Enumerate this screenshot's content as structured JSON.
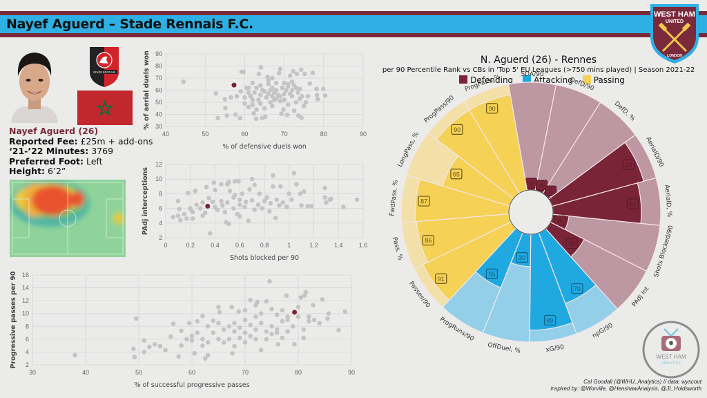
{
  "header": {
    "title": "Nayef Aguerd – Stade Rennais F.C.",
    "crest_top": "WEST HAM",
    "crest_mid": "UNITED",
    "crest_bottom": "LONDON"
  },
  "player": {
    "name_line": "Nayef Aguerd (26)",
    "fee_label": "Reported Fee:",
    "fee_value": "£25m + add-ons",
    "minutes_label": "‘21-’22 Minutes:",
    "minutes_value": "3769",
    "foot_label": "Preferred Foot:",
    "foot_value": "Left",
    "height_label": "Height:",
    "height_value": "6’2”",
    "club_badge_text": "STADE RENNAIS"
  },
  "colors": {
    "defending": "#7a2438",
    "defending_bg": "#bd98a3",
    "attacking": "#1fa9e0",
    "attacking_bg": "#93cfe8",
    "passing": "#f5d155",
    "passing_bg": "#f2e0a8",
    "highlight": "#7a2438",
    "dots": "#c4c4c4"
  },
  "pizza": {
    "title": "N. Aguerd (26) - Rennes",
    "subtitle": "per 90 Percentile Rank vs CBs in 'Top 5' EU Leagues (>750 mins played) | Season 2021-22",
    "legend": [
      "Defending",
      "Attacking",
      "Passing"
    ]
  },
  "credits": {
    "line1": "Cal Goodall (@WHU_Analytics) // data: wyscout",
    "line2": "inspired by: @Worville, @HenshawAnalysis, @JI_Holdsworth",
    "logo_text1": "WEST HAM",
    "logo_text2": "ANALYTICS"
  },
  "chart_data": [
    {
      "type": "scatter",
      "id": "aerial",
      "xlabel": "% of defensive duels won",
      "ylabel": "% of aerial duels won",
      "xlim": [
        40,
        90
      ],
      "ylim": [
        30,
        90
      ],
      "xticks": [
        40,
        50,
        60,
        70,
        80,
        90
      ],
      "yticks": [
        30,
        40,
        50,
        60,
        70,
        80,
        90
      ],
      "grid": true,
      "highlight": {
        "x": 57.3,
        "y": 64.2,
        "label": "Nayef Aguerd"
      },
      "points": [
        [
          44.5,
          67
        ],
        [
          52.7,
          57.3
        ],
        [
          53.2,
          37
        ],
        [
          55,
          52.5
        ],
        [
          55.1,
          45.2
        ],
        [
          55.5,
          39
        ],
        [
          56.5,
          54
        ],
        [
          57.7,
          39.8
        ],
        [
          58.8,
          36.8
        ],
        [
          59.2,
          75.2
        ],
        [
          59.7,
          75
        ],
        [
          60.5,
          62
        ],
        [
          61,
          58
        ],
        [
          62,
          48
        ],
        [
          62.3,
          40.8
        ],
        [
          62.9,
          36.3
        ],
        [
          63.6,
          73.5
        ],
        [
          64.1,
          78.8
        ],
        [
          64.4,
          37
        ],
        [
          65.2,
          38
        ],
        [
          65.8,
          71
        ],
        [
          66.5,
          60
        ],
        [
          67,
          55
        ],
        [
          67.5,
          52
        ],
        [
          68,
          66
        ],
        [
          68.7,
          74
        ],
        [
          69,
          77.5
        ],
        [
          69.3,
          40.5
        ],
        [
          69.8,
          44
        ],
        [
          70.8,
          39.5
        ],
        [
          71.5,
          72
        ],
        [
          72,
          60
        ],
        [
          72.3,
          75.6
        ],
        [
          72.5,
          43
        ],
        [
          73.2,
          73.5
        ],
        [
          73.6,
          39
        ],
        [
          74.4,
          37.2
        ],
        [
          74.3,
          77
        ],
        [
          75.2,
          73.5
        ],
        [
          75.5,
          50
        ],
        [
          76.5,
          65.5
        ],
        [
          77.2,
          74.3
        ],
        [
          78.2,
          61
        ],
        [
          78.3,
          56
        ],
        [
          78.5,
          52.5
        ],
        [
          79.9,
          61
        ],
        [
          80.4,
          55.5
        ],
        [
          61.5,
          55
        ],
        [
          62.5,
          58
        ],
        [
          63.5,
          52
        ],
        [
          64.5,
          60
        ],
        [
          65.5,
          54
        ],
        [
          66.5,
          50
        ],
        [
          67.5,
          58
        ],
        [
          68.5,
          56
        ],
        [
          69.5,
          62
        ],
        [
          70.5,
          60
        ],
        [
          71.5,
          57
        ],
        [
          72.5,
          64
        ],
        [
          73.5,
          58
        ],
        [
          74.5,
          55
        ],
        [
          63,
          62
        ],
        [
          64,
          49
        ],
        [
          65,
          45
        ],
        [
          66,
          65
        ],
        [
          67,
          47
        ],
        [
          68,
          53
        ],
        [
          69,
          51
        ],
        [
          70,
          57
        ],
        [
          71,
          63
        ],
        [
          72,
          55
        ],
        [
          73,
          50
        ],
        [
          74,
          61
        ],
        [
          60,
          54
        ],
        [
          61,
          62
        ],
        [
          62,
          66
        ],
        [
          63,
          44
        ],
        [
          64,
          56
        ],
        [
          65,
          59
        ],
        [
          66,
          57
        ],
        [
          67,
          62
        ],
        [
          68,
          60
        ],
        [
          69,
          55
        ],
        [
          70,
          52
        ],
        [
          71,
          48
        ],
        [
          72,
          67
        ],
        [
          73,
          62
        ],
        [
          74,
          53
        ],
        [
          75,
          47
        ],
        [
          76,
          55
        ],
        [
          58,
          55
        ],
        [
          59,
          59
        ],
        [
          60,
          49
        ],
        [
          61,
          46
        ],
        [
          66,
          68
        ],
        [
          67,
          70
        ],
        [
          70,
          66
        ],
        [
          71,
          65
        ],
        [
          62,
          52
        ],
        [
          64,
          64
        ]
      ]
    },
    {
      "type": "scatter",
      "id": "shots",
      "xlabel": "Shots blocked per 90",
      "ylabel": "PAdj interceptions",
      "xlim": [
        0,
        1.6
      ],
      "ylim": [
        2,
        12
      ],
      "xticks": [
        0,
        0.2,
        0.4,
        0.6,
        0.8,
        1,
        1.2,
        1.4,
        1.6
      ],
      "yticks": [
        2,
        4,
        6,
        8,
        10,
        12
      ],
      "grid": true,
      "highlight": {
        "x": 0.34,
        "y": 6.3,
        "label": "Nayef Aguerd"
      },
      "points": [
        [
          0.06,
          4.8
        ],
        [
          0.1,
          7
        ],
        [
          0.1,
          5
        ],
        [
          0.11,
          5.9
        ],
        [
          0.12,
          4.4
        ],
        [
          0.17,
          4.6
        ],
        [
          0.18,
          8.1
        ],
        [
          0.2,
          6
        ],
        [
          0.22,
          4.6
        ],
        [
          0.24,
          8.4
        ],
        [
          0.3,
          5
        ],
        [
          0.33,
          8.9
        ],
        [
          0.36,
          2.6
        ],
        [
          0.39,
          9.5
        ],
        [
          0.4,
          8.5
        ],
        [
          0.45,
          9.3
        ],
        [
          0.5,
          9.3
        ],
        [
          0.51,
          9.6
        ],
        [
          0.49,
          4.1
        ],
        [
          0.51,
          3.9
        ],
        [
          0.56,
          9.7
        ],
        [
          0.59,
          9.7
        ],
        [
          0.6,
          4.9
        ],
        [
          0.67,
          4.3
        ],
        [
          0.7,
          10
        ],
        [
          0.72,
          9.2
        ],
        [
          0.76,
          8
        ],
        [
          0.82,
          7.5
        ],
        [
          0.87,
          10.5
        ],
        [
          0.87,
          9
        ],
        [
          0.89,
          4.7
        ],
        [
          0.93,
          9
        ],
        [
          0.98,
          6.2
        ],
        [
          1,
          8
        ],
        [
          1.04,
          10.8
        ],
        [
          1.06,
          9.3
        ],
        [
          1.09,
          8
        ],
        [
          1.1,
          6.4
        ],
        [
          1.12,
          8.3
        ],
        [
          1.15,
          6.3
        ],
        [
          1.18,
          6.3
        ],
        [
          1.29,
          8.8
        ],
        [
          1.29,
          7.5
        ],
        [
          1.3,
          6.8
        ],
        [
          1.33,
          7.2
        ],
        [
          1.34,
          7.3
        ],
        [
          1.44,
          6.2
        ],
        [
          1.55,
          7.2
        ],
        [
          0.25,
          6.5
        ],
        [
          0.3,
          6.8
        ],
        [
          0.35,
          7.4
        ],
        [
          0.4,
          6.2
        ],
        [
          0.45,
          7
        ],
        [
          0.5,
          6.8
        ],
        [
          0.55,
          7.5
        ],
        [
          0.6,
          7.2
        ],
        [
          0.65,
          6.9
        ],
        [
          0.7,
          7.1
        ],
        [
          0.75,
          6.5
        ],
        [
          0.8,
          7
        ],
        [
          0.85,
          6.7
        ],
        [
          0.9,
          7.2
        ],
        [
          0.95,
          6.8
        ],
        [
          0.55,
          6
        ],
        [
          0.6,
          6.5
        ],
        [
          0.62,
          8
        ],
        [
          0.58,
          5.2
        ],
        [
          0.48,
          5.5
        ],
        [
          0.42,
          5.8
        ],
        [
          0.38,
          6.9
        ],
        [
          0.28,
          6
        ],
        [
          0.22,
          5.5
        ],
        [
          0.32,
          5.4
        ],
        [
          0.52,
          8.4
        ],
        [
          0.68,
          8.6
        ],
        [
          0.72,
          5.8
        ],
        [
          0.78,
          6
        ],
        [
          0.84,
          5.6
        ],
        [
          0.92,
          6.4
        ],
        [
          1.02,
          7.2
        ],
        [
          0.15,
          5.2
        ],
        [
          0.2,
          5.9
        ],
        [
          0.64,
          6.2
        ],
        [
          0.56,
          7.8
        ],
        [
          0.46,
          6.4
        ]
      ]
    },
    {
      "type": "scatter",
      "id": "progpass",
      "xlabel": "% of successful  progressive passes",
      "ylabel": "Progressive passes per 90",
      "xlim": [
        30,
        90
      ],
      "ylim": [
        2,
        16
      ],
      "xticks": [
        30,
        40,
        50,
        60,
        70,
        80,
        90
      ],
      "yticks": [
        2,
        4,
        6,
        8,
        10,
        12,
        14,
        16
      ],
      "grid": true,
      "highlight": {
        "x": 79.3,
        "y": 10.2,
        "label": "Nayef Aguerd"
      },
      "points": [
        [
          38,
          3.5
        ],
        [
          49,
          4.5
        ],
        [
          49.2,
          3.2
        ],
        [
          49.5,
          9.2
        ],
        [
          51,
          5.8
        ],
        [
          51,
          4
        ],
        [
          52,
          4.8
        ],
        [
          53,
          5.2
        ],
        [
          54,
          4.9
        ],
        [
          55,
          4.3
        ],
        [
          56,
          6.4
        ],
        [
          56.5,
          8.4
        ],
        [
          57.5,
          3.3
        ],
        [
          58,
          7.3
        ],
        [
          59.5,
          8.5
        ],
        [
          60,
          5.8
        ],
        [
          60.5,
          3.8
        ],
        [
          61,
          8.8
        ],
        [
          62,
          9.6
        ],
        [
          62.5,
          3
        ],
        [
          63,
          3.5
        ],
        [
          64,
          8.9
        ],
        [
          65,
          11
        ],
        [
          65.2,
          10.2
        ],
        [
          67.5,
          11
        ],
        [
          67.6,
          3.8
        ],
        [
          68,
          4.9
        ],
        [
          68.8,
          10.3
        ],
        [
          70,
          10.5
        ],
        [
          71,
          12.1
        ],
        [
          72,
          11.3
        ],
        [
          72.3,
          11.8
        ],
        [
          73,
          4.3
        ],
        [
          74,
          11.9
        ],
        [
          74.6,
          15
        ],
        [
          75,
          10.7
        ],
        [
          76.2,
          5.2
        ],
        [
          77.8,
          12.8
        ],
        [
          78,
          9.5
        ],
        [
          79.3,
          5.2
        ],
        [
          80.5,
          12.5
        ],
        [
          81,
          6.2
        ],
        [
          81.2,
          12.8
        ],
        [
          81.4,
          13.3
        ],
        [
          82.8,
          11.3
        ],
        [
          84.5,
          12.2
        ],
        [
          85.5,
          9.2
        ],
        [
          85.7,
          10
        ],
        [
          87.6,
          7.4
        ],
        [
          88.8,
          10.3
        ],
        [
          60,
          6.5
        ],
        [
          62,
          6
        ],
        [
          64,
          7
        ],
        [
          65,
          6
        ],
        [
          66,
          7.5
        ],
        [
          67,
          8
        ],
        [
          68,
          7.2
        ],
        [
          69,
          7.8
        ],
        [
          70,
          7
        ],
        [
          71,
          8.2
        ],
        [
          72,
          7.5
        ],
        [
          73,
          8.5
        ],
        [
          74,
          7.2
        ],
        [
          75,
          8
        ],
        [
          76,
          7.5
        ],
        [
          77,
          8.8
        ],
        [
          78,
          9
        ],
        [
          79,
          8
        ],
        [
          80,
          9.5
        ],
        [
          81,
          7.5
        ],
        [
          82,
          8.8
        ],
        [
          83,
          9
        ],
        [
          84,
          8.5
        ],
        [
          62,
          5
        ],
        [
          63,
          5.5
        ],
        [
          66,
          5.5
        ],
        [
          67,
          6
        ],
        [
          69,
          6.2
        ],
        [
          70,
          5.5
        ],
        [
          71,
          6.5
        ],
        [
          72,
          6
        ],
        [
          74,
          6
        ],
        [
          75,
          6.8
        ],
        [
          76,
          7
        ],
        [
          77,
          6.2
        ],
        [
          78,
          7.2
        ],
        [
          58,
          5
        ],
        [
          59,
          6
        ],
        [
          61,
          7
        ],
        [
          63,
          8
        ],
        [
          65,
          8.5
        ],
        [
          68,
          8.5
        ],
        [
          70,
          9
        ],
        [
          72,
          9.5
        ],
        [
          73,
          10
        ],
        [
          76,
          9.8
        ],
        [
          77,
          10.5
        ],
        [
          80,
          11
        ],
        [
          82,
          9.5
        ]
      ]
    },
    {
      "type": "pie",
      "subtype": "percentile-pizza",
      "title": "N. Aguerd (26) - Rennes",
      "subtitle": "per 90 Percentile Rank vs CBs in 'Top 5' EU Leagues (>750 mins played) | Season 2021-22",
      "legend": [
        "Defending",
        "Attacking",
        "Passing"
      ],
      "range": [
        0,
        100
      ],
      "slices": [
        {
          "label": "SDA/90",
          "value": 4,
          "group": "Defending"
        },
        {
          "label": "DefD/90",
          "value": 6,
          "group": "Defending"
        },
        {
          "label": "DefD, %",
          "value": 3,
          "group": "Defending"
        },
        {
          "label": "AerialD/90",
          "value": 88,
          "group": "Defending"
        },
        {
          "label": "AerialD, %",
          "value": 82,
          "group": "Defending"
        },
        {
          "label": "Shots Blocked/90",
          "value": 15,
          "group": "Defending"
        },
        {
          "label": "PAdj Int",
          "value": 35,
          "group": "Defending"
        },
        {
          "label": "npG/90",
          "value": 70,
          "group": "Attacking"
        },
        {
          "label": "xG/90",
          "value": 89,
          "group": "Attacking"
        },
        {
          "label": "OffDuel, %",
          "value": 30,
          "group": "Attacking"
        },
        {
          "label": "ProgRuns/90",
          "value": 55,
          "group": "Attacking"
        },
        {
          "label": "Passes/90",
          "value": 91,
          "group": "Passing"
        },
        {
          "label": "Pass, %",
          "value": 86,
          "group": "Passing"
        },
        {
          "label": "FwdPass, %",
          "value": 87,
          "group": "Passing"
        },
        {
          "label": "LongPass, %",
          "value": 65,
          "group": "Passing"
        },
        {
          "label": "ProgPass/90",
          "value": 90,
          "group": "Passing"
        },
        {
          "label": "ProgPass, %",
          "value": 90,
          "group": "Passing"
        }
      ]
    }
  ]
}
